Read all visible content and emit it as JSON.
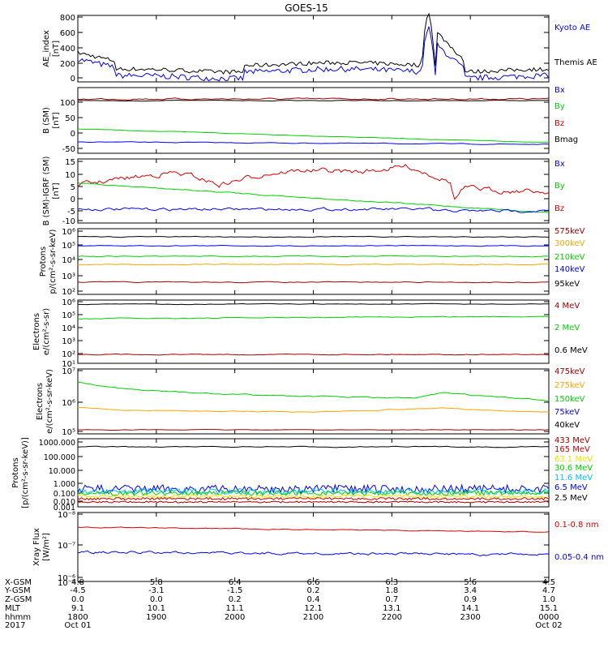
{
  "title": "GOES-15",
  "colors": {
    "black": "#000000",
    "blue": "#0000ff",
    "red": "#d40000",
    "darkred": "#a00000",
    "green": "#00d000",
    "orange": "#ffa500",
    "cyan": "#00c0ff",
    "yellow": "#e8e800"
  },
  "chart_data": [
    {
      "type": "line",
      "ylabel": "AE_index",
      "yunit": "[nT]",
      "yticks": [
        "800",
        "600",
        "400",
        "200",
        "0"
      ],
      "series": [
        {
          "name": "Kyoto AE",
          "color": "blue"
        },
        {
          "name": "Themis AE",
          "color": "black"
        }
      ]
    },
    {
      "type": "line",
      "ylabel": "B (SM)",
      "yunit": "[nT]",
      "yticks": [
        "100",
        "50",
        "0",
        "-50"
      ],
      "series": [
        {
          "name": "Bx",
          "color": "blue"
        },
        {
          "name": "By",
          "color": "green"
        },
        {
          "name": "Bz",
          "color": "red"
        },
        {
          "name": "Bmag",
          "color": "black"
        }
      ]
    },
    {
      "type": "line",
      "ylabel": "B (SM)-IGRF (SM)",
      "yunit": "[nT]",
      "yticks": [
        "15",
        "10",
        "5",
        "0",
        "-5",
        "-10"
      ],
      "series": [
        {
          "name": "Bx",
          "color": "blue"
        },
        {
          "name": "By",
          "color": "green"
        },
        {
          "name": "Bz",
          "color": "red"
        }
      ]
    },
    {
      "type": "line",
      "ylabel": "Protons",
      "yunit": "p/(cm²-s-sr-keV)",
      "scale": "log",
      "yticks": [
        "10⁶",
        "10⁵",
        "10⁴",
        "10³",
        "10²"
      ],
      "series": [
        {
          "name": "575keV",
          "color": "darkred"
        },
        {
          "name": "300keV",
          "color": "orange"
        },
        {
          "name": "210keV",
          "color": "green"
        },
        {
          "name": "140keV",
          "color": "blue"
        },
        {
          "name": "95keV",
          "color": "black"
        }
      ]
    },
    {
      "type": "line",
      "ylabel": "Electrons",
      "yunit": "e/(cm²-s-sr)",
      "scale": "log",
      "yticks": [
        "10⁶",
        "10⁵",
        "10⁴",
        "10³",
        "10²",
        "10¹"
      ],
      "series": [
        {
          "name": "4 MeV",
          "color": "darkred"
        },
        {
          "name": "2 MeV",
          "color": "green"
        },
        {
          "name": "0.6 MeV",
          "color": "black"
        }
      ]
    },
    {
      "type": "line",
      "ylabel": "Electrons",
      "yunit": "e/(cm²-s-sr-keV)",
      "scale": "log",
      "yticks": [
        "10⁷",
        "10⁶",
        "10⁵"
      ],
      "series": [
        {
          "name": "475keV",
          "color": "darkred"
        },
        {
          "name": "275keV",
          "color": "orange"
        },
        {
          "name": "150keV",
          "color": "green"
        },
        {
          "name": "75keV",
          "color": "blue"
        },
        {
          "name": "40keV",
          "color": "black"
        }
      ]
    },
    {
      "type": "line",
      "ylabel": "Protons",
      "yunit": "[p/(cm²-s-sr-keV)]",
      "scale": "log",
      "yticks": [
        "1000.000",
        "100.000",
        "10.000",
        "1.000",
        "0.100",
        "0.010",
        "0.001"
      ],
      "series": [
        {
          "name": "433 MeV",
          "color": "darkred"
        },
        {
          "name": "165 MeV",
          "color": "red"
        },
        {
          "name": "63.1 MeV",
          "color": "yellow"
        },
        {
          "name": "30.6 MeV",
          "color": "green"
        },
        {
          "name": "11.6 MeV",
          "color": "cyan"
        },
        {
          "name": "6.5 MeV",
          "color": "blue"
        },
        {
          "name": "2.5 MeV",
          "color": "black"
        }
      ]
    },
    {
      "type": "line",
      "ylabel": "Xray Flux",
      "yunit": "[W/m²]",
      "scale": "log",
      "yticks": [
        "10⁻⁸",
        "10⁻⁷",
        "10⁻⁶",
        "10⁻⁹"
      ],
      "series": [
        {
          "name": "0.1-0.8 nm",
          "color": "red"
        },
        {
          "name": "0.05-0.4 nm",
          "color": "blue"
        }
      ]
    }
  ],
  "xaxis": {
    "row_labels": [
      "X-GSM",
      "Y-GSM",
      "Z-GSM",
      "MLT",
      "hhmm",
      "2017"
    ],
    "columns": [
      [
        "4.8",
        "-4.5",
        "0.0",
        "9.1",
        "1800",
        "Oct 01"
      ],
      [
        "5.8",
        "-3.1",
        "0.0",
        "10.1",
        "1900",
        ""
      ],
      [
        "6.4",
        "-1.5",
        "0.2",
        "11.1",
        "2000",
        ""
      ],
      [
        "6.6",
        "0.2",
        "0.4",
        "12.1",
        "2100",
        ""
      ],
      [
        "6.3",
        "1.8",
        "0.7",
        "13.1",
        "2200",
        ""
      ],
      [
        "5.6",
        "3.4",
        "0.9",
        "14.1",
        "2300",
        ""
      ],
      [
        "4.5",
        "4.7",
        "1.0",
        "15.1",
        "0000",
        "Oct 02"
      ]
    ]
  }
}
